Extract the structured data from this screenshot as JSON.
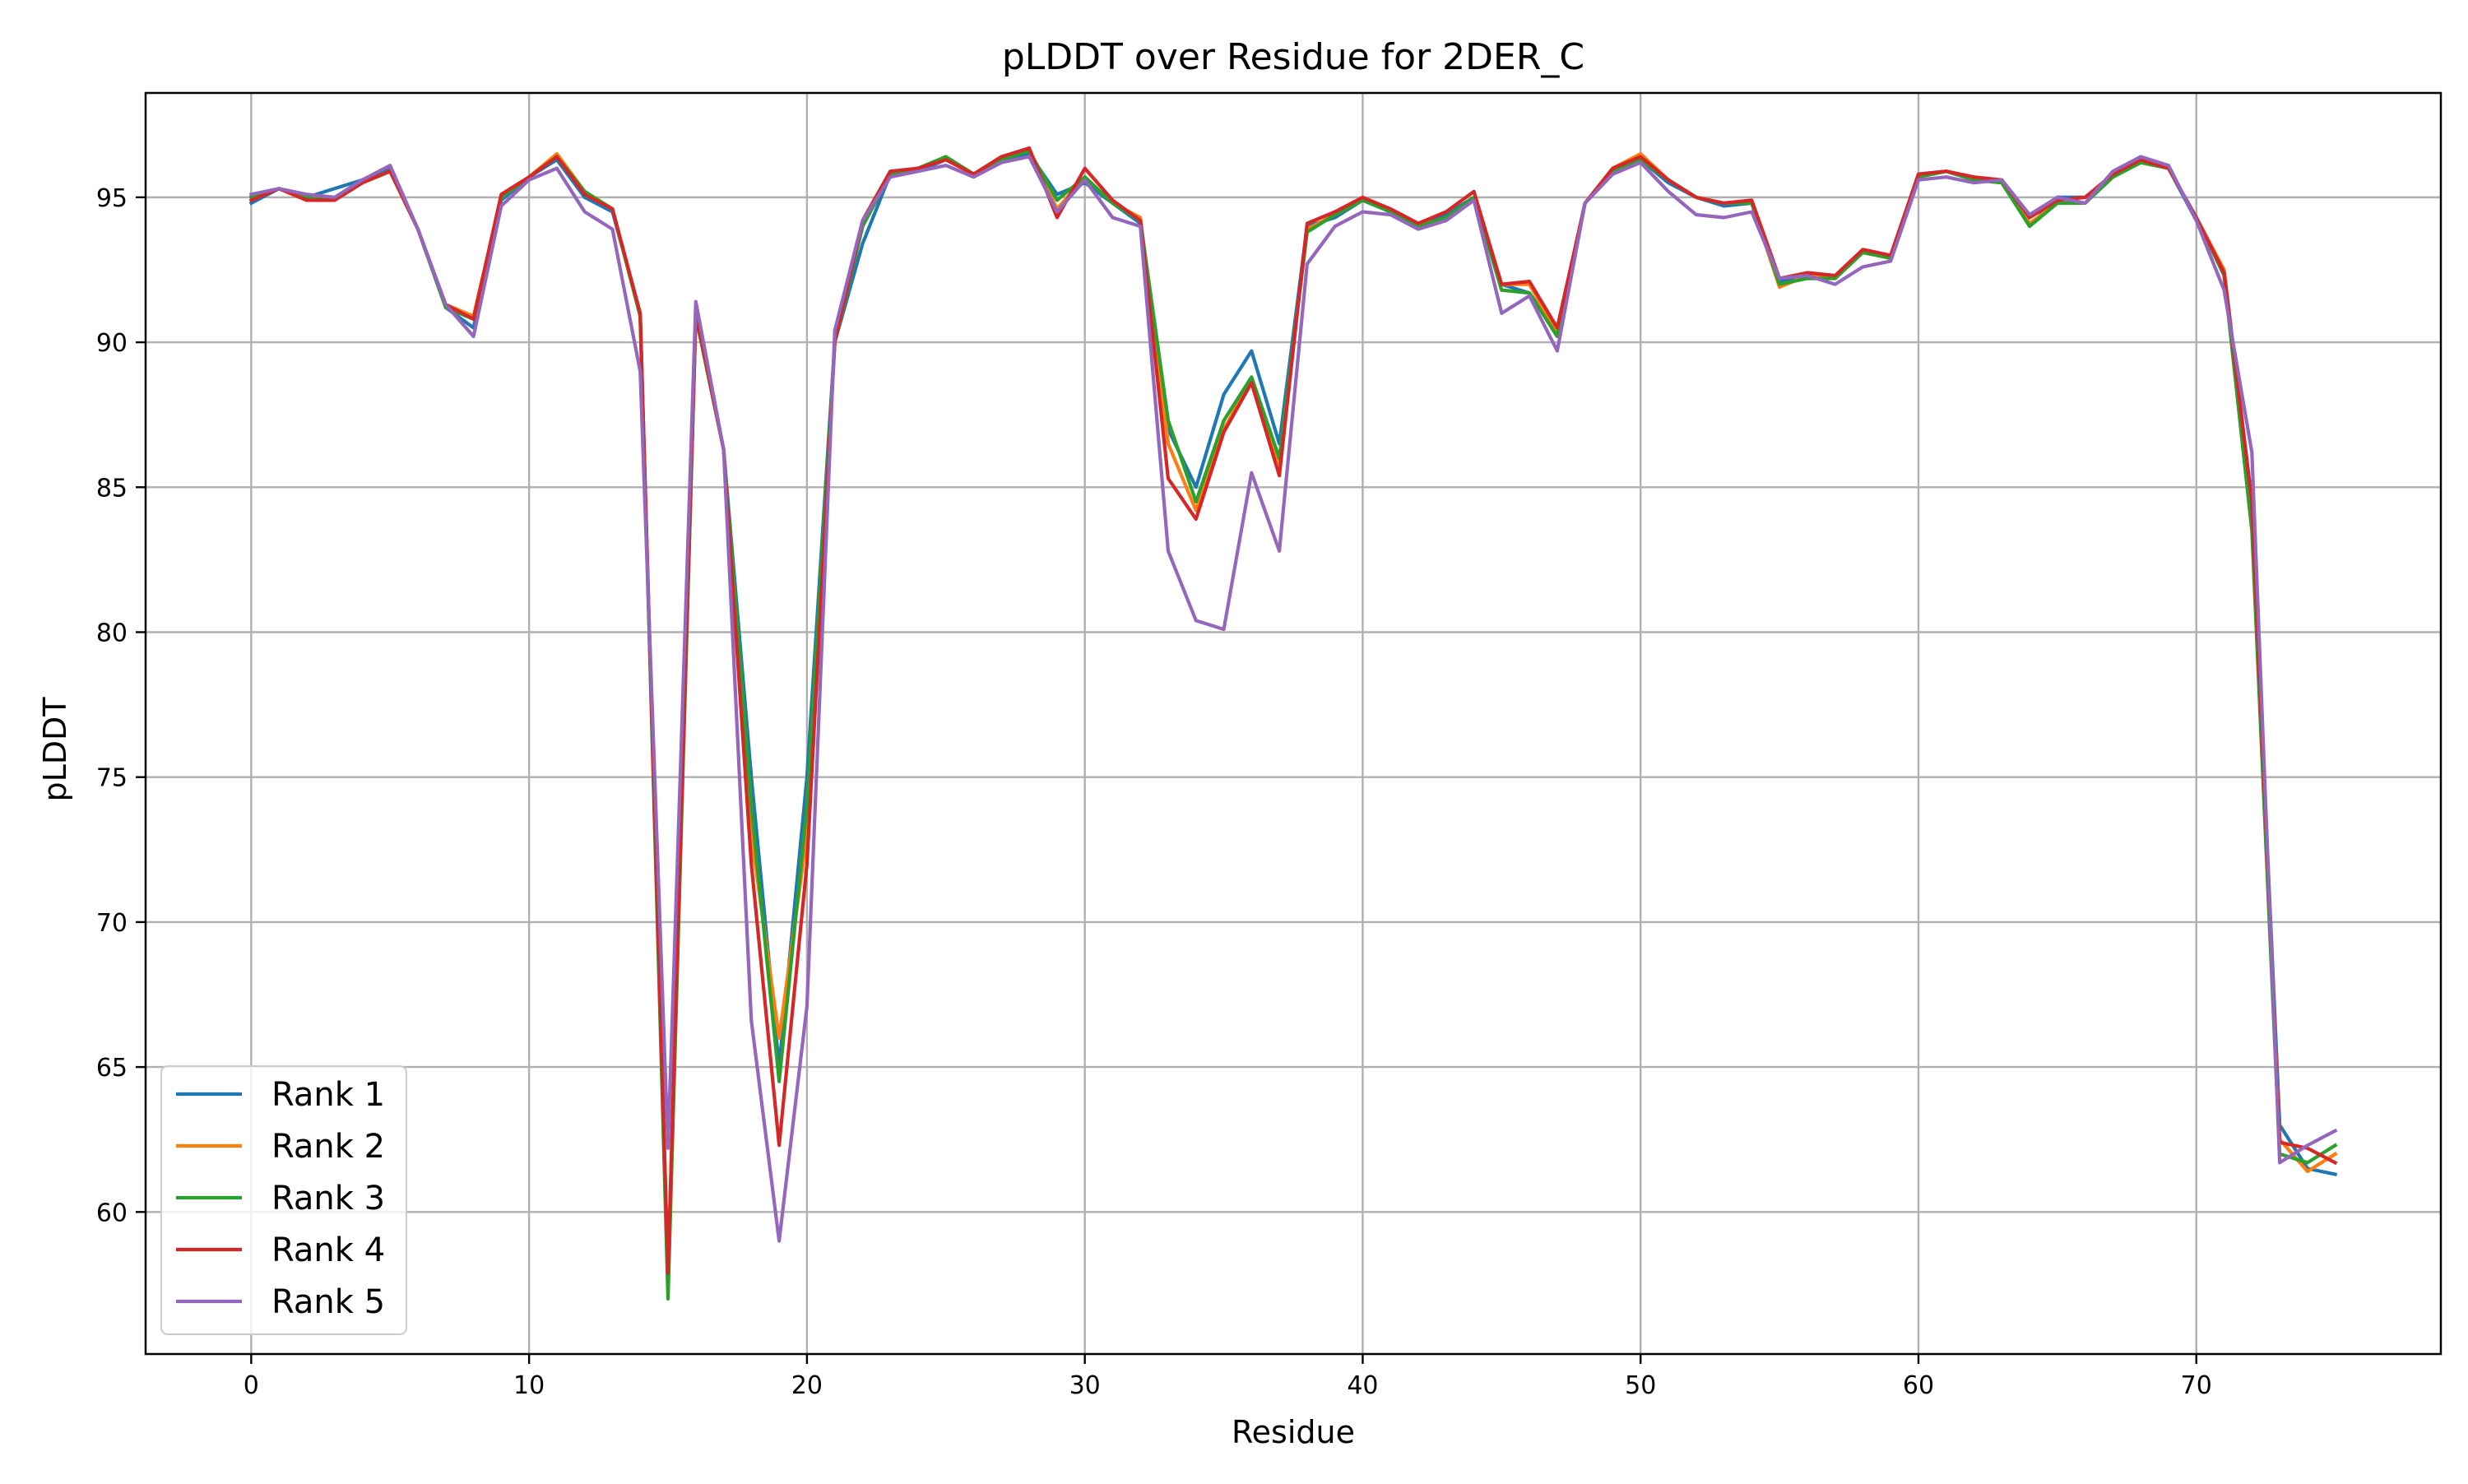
{
  "chart_data": {
    "type": "line",
    "title": "pLDDT over Residue for 2DER_C",
    "xlabel": "Residue",
    "ylabel": "pLDDT",
    "xlim": [
      -3.8,
      78.8
    ],
    "ylim": [
      55.1,
      98.6
    ],
    "xticks": [
      "0",
      "10",
      "20",
      "30",
      "40",
      "50",
      "60",
      "70"
    ],
    "yticks": [
      "60",
      "65",
      "70",
      "75",
      "80",
      "85",
      "90",
      "95"
    ],
    "grid": true,
    "legend_position": "bottom-left",
    "x": [
      0,
      1,
      2,
      3,
      4,
      5,
      6,
      7,
      8,
      9,
      10,
      11,
      12,
      13,
      14,
      15,
      16,
      17,
      18,
      19,
      20,
      21,
      22,
      23,
      24,
      25,
      26,
      27,
      28,
      29,
      30,
      31,
      32,
      33,
      34,
      35,
      36,
      37,
      38,
      39,
      40,
      41,
      42,
      43,
      44,
      45,
      46,
      47,
      48,
      49,
      50,
      51,
      52,
      53,
      54,
      55,
      56,
      57,
      58,
      59,
      60,
      61,
      62,
      63,
      64,
      65,
      66,
      67,
      68,
      69,
      70,
      71,
      72,
      73,
      74,
      75
    ],
    "series": [
      {
        "name": "Rank 1",
        "color": "#1f77b4",
        "values": [
          94.8,
          95.3,
          95.0,
          95.3,
          95.6,
          96.0,
          93.9,
          91.2,
          90.5,
          94.9,
          95.7,
          96.3,
          95.0,
          94.5,
          91.0,
          57.5,
          91.1,
          86.3,
          75.0,
          65.0,
          75.0,
          90.0,
          93.4,
          95.8,
          95.9,
          96.3,
          95.8,
          96.3,
          96.5,
          95.1,
          95.5,
          94.8,
          94.1,
          87.0,
          85.0,
          88.2,
          89.7,
          86.5,
          94.0,
          94.3,
          94.9,
          94.5,
          94.1,
          94.4,
          95.0,
          92.0,
          91.7,
          90.3,
          94.8,
          95.9,
          96.3,
          95.5,
          95.0,
          94.7,
          94.8,
          92.1,
          92.3,
          92.2,
          93.1,
          92.9,
          95.8,
          95.9,
          95.6,
          95.6,
          94.0,
          95.0,
          95.0,
          95.8,
          96.3,
          96.0,
          94.2,
          92.5,
          84.5,
          63.0,
          61.5,
          61.3
        ]
      },
      {
        "name": "Rank 2",
        "color": "#ff7f0e",
        "values": [
          95.0,
          95.3,
          94.9,
          94.9,
          95.5,
          95.9,
          93.9,
          91.3,
          90.9,
          95.0,
          95.7,
          96.5,
          95.2,
          94.6,
          90.9,
          57.8,
          90.9,
          86.3,
          73.0,
          66.0,
          73.0,
          90.0,
          94.0,
          95.8,
          96.0,
          96.3,
          95.8,
          96.4,
          96.6,
          94.6,
          95.7,
          94.8,
          94.3,
          86.5,
          84.2,
          87.0,
          88.7,
          85.8,
          93.9,
          94.4,
          94.9,
          94.6,
          94.1,
          94.2,
          95.0,
          92.0,
          92.0,
          90.3,
          94.8,
          96.0,
          96.5,
          95.6,
          95.0,
          94.8,
          94.8,
          91.9,
          92.3,
          92.2,
          93.1,
          92.9,
          95.7,
          95.9,
          95.6,
          95.5,
          94.1,
          94.8,
          94.8,
          95.8,
          96.2,
          96.0,
          94.3,
          92.5,
          84.0,
          62.5,
          61.4,
          62.0
        ]
      },
      {
        "name": "Rank 3",
        "color": "#2ca02c",
        "values": [
          95.0,
          95.3,
          95.0,
          94.9,
          95.5,
          95.9,
          93.9,
          91.2,
          90.8,
          95.0,
          95.7,
          96.4,
          95.2,
          94.6,
          90.9,
          57.0,
          90.9,
          86.3,
          74.0,
          64.5,
          74.0,
          90.0,
          94.0,
          95.8,
          96.0,
          96.4,
          95.8,
          96.3,
          96.6,
          94.9,
          95.7,
          94.8,
          94.2,
          87.3,
          84.5,
          87.3,
          88.8,
          86.0,
          93.8,
          94.4,
          94.9,
          94.5,
          94.0,
          94.3,
          95.0,
          91.8,
          91.7,
          90.2,
          94.8,
          95.9,
          96.3,
          95.6,
          95.0,
          94.8,
          94.8,
          92.0,
          92.2,
          92.2,
          93.1,
          92.9,
          95.7,
          95.9,
          95.6,
          95.5,
          94.0,
          94.8,
          94.8,
          95.7,
          96.2,
          96.0,
          94.3,
          92.3,
          83.5,
          62.0,
          61.7,
          62.3
        ]
      },
      {
        "name": "Rank 4",
        "color": "#d62728",
        "values": [
          94.9,
          95.3,
          94.9,
          94.9,
          95.5,
          95.9,
          93.9,
          91.3,
          90.8,
          95.1,
          95.7,
          96.4,
          95.1,
          94.6,
          91.0,
          57.9,
          91.0,
          86.3,
          72.0,
          62.3,
          72.0,
          90.0,
          94.2,
          95.9,
          96.0,
          96.3,
          95.8,
          96.4,
          96.7,
          94.3,
          96.0,
          94.9,
          94.2,
          85.3,
          83.9,
          86.9,
          88.6,
          85.4,
          94.1,
          94.5,
          95.0,
          94.6,
          94.1,
          94.5,
          95.2,
          92.0,
          92.1,
          90.5,
          94.8,
          96.0,
          96.4,
          95.6,
          95.0,
          94.8,
          94.9,
          92.2,
          92.4,
          92.3,
          93.2,
          93.0,
          95.8,
          95.9,
          95.7,
          95.6,
          94.3,
          94.9,
          95.0,
          95.8,
          96.3,
          96.0,
          94.3,
          92.4,
          84.5,
          62.4,
          62.2,
          61.7
        ]
      },
      {
        "name": "Rank 5",
        "color": "#9467bd",
        "values": [
          95.1,
          95.3,
          95.1,
          95.0,
          95.6,
          96.1,
          93.9,
          91.3,
          90.2,
          94.7,
          95.6,
          96.0,
          94.5,
          93.9,
          89.0,
          62.2,
          91.4,
          86.3,
          66.6,
          59.0,
          67.1,
          90.4,
          94.2,
          95.7,
          95.9,
          96.1,
          95.7,
          96.2,
          96.4,
          94.5,
          95.6,
          94.3,
          94.0,
          82.8,
          80.4,
          80.1,
          85.5,
          82.8,
          92.7,
          94.0,
          94.5,
          94.4,
          93.9,
          94.2,
          94.9,
          91.0,
          91.6,
          89.7,
          94.8,
          95.8,
          96.2,
          95.2,
          94.4,
          94.3,
          94.5,
          92.2,
          92.3,
          92.0,
          92.6,
          92.8,
          95.6,
          95.7,
          95.5,
          95.6,
          94.4,
          95.0,
          94.8,
          95.9,
          96.4,
          96.1,
          94.2,
          91.8,
          86.2,
          61.7,
          62.3,
          62.8
        ]
      }
    ]
  }
}
